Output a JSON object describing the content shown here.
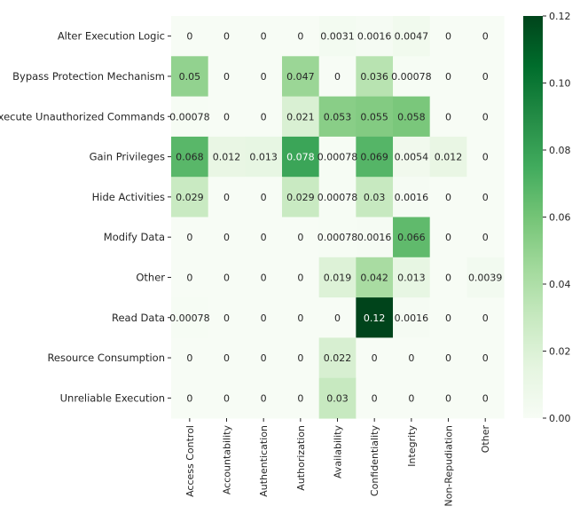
{
  "chart_data": {
    "type": "heatmap",
    "title": "",
    "xlabel": "",
    "ylabel": "",
    "rows": [
      "Alter Execution Logic",
      "Bypass Protection Mechanism",
      "Execute Unauthorized Commands",
      "Gain Privileges",
      "Hide Activities",
      "Modify Data",
      "Other",
      "Read Data",
      "Resource Consumption",
      "Unreliable Execution"
    ],
    "columns": [
      "Access Control",
      "Accountability",
      "Authentication",
      "Authorization",
      "Availability",
      "Confidentiality",
      "Integrity",
      "Non-Repudiation",
      "Other"
    ],
    "values": [
      [
        0,
        0,
        0,
        0,
        0.0031,
        0.0016,
        0.0047,
        0,
        0
      ],
      [
        0.05,
        0,
        0,
        0.047,
        0,
        0.036,
        0.00078,
        0,
        0
      ],
      [
        0.00078,
        0,
        0,
        0.021,
        0.053,
        0.055,
        0.058,
        0,
        0
      ],
      [
        0.068,
        0.012,
        0.013,
        0.078,
        0.00078,
        0.069,
        0.0054,
        0.012,
        0
      ],
      [
        0.029,
        0,
        0,
        0.029,
        0.00078,
        0.03,
        0.0016,
        0,
        0
      ],
      [
        0,
        0,
        0,
        0,
        0.00078,
        0.0016,
        0.066,
        0,
        0
      ],
      [
        0,
        0,
        0,
        0,
        0.019,
        0.042,
        0.013,
        0,
        0.0039
      ],
      [
        0.00078,
        0,
        0,
        0,
        0,
        0.12,
        0.0016,
        0,
        0
      ],
      [
        0,
        0,
        0,
        0,
        0.022,
        0,
        0,
        0,
        0
      ],
      [
        0,
        0,
        0,
        0,
        0.03,
        0,
        0,
        0,
        0
      ]
    ],
    "cell_labels": [
      [
        "0",
        "0",
        "0",
        "0",
        "0.0031",
        "0.0016",
        "0.0047",
        "0",
        "0"
      ],
      [
        "0.05",
        "0",
        "0",
        "0.047",
        "0",
        "0.036",
        "0.00078",
        "0",
        "0"
      ],
      [
        "0.00078",
        "0",
        "0",
        "0.021",
        "0.053",
        "0.055",
        "0.058",
        "0",
        "0"
      ],
      [
        "0.068",
        "0.012",
        "0.013",
        "0.078",
        "0.00078",
        "0.069",
        "0.0054",
        "0.012",
        "0"
      ],
      [
        "0.029",
        "0",
        "0",
        "0.029",
        "0.00078",
        "0.03",
        "0.0016",
        "0",
        "0"
      ],
      [
        "0",
        "0",
        "0",
        "0",
        "0.00078",
        "0.0016",
        "0.066",
        "0",
        "0"
      ],
      [
        "0",
        "0",
        "0",
        "0",
        "0.019",
        "0.042",
        "0.013",
        "0",
        "0.0039"
      ],
      [
        "0.00078",
        "0",
        "0",
        "0",
        "0",
        "0.12",
        "0.0016",
        "0",
        "0"
      ],
      [
        "0",
        "0",
        "0",
        "0",
        "0.022",
        "0",
        "0",
        "0",
        "0"
      ],
      [
        "0",
        "0",
        "0",
        "0",
        "0.03",
        "0",
        "0",
        "0",
        "0"
      ]
    ],
    "colorbar": {
      "range": [
        0,
        0.12
      ],
      "ticks": [
        0,
        0.02,
        0.04,
        0.06,
        0.08,
        0.1,
        0.12
      ],
      "tick_labels": [
        "0.00",
        "0.02",
        "0.04",
        "0.06",
        "0.08",
        "0.10",
        "0.12"
      ]
    },
    "colormap": [
      "#f7fcf5",
      "#e5f5e0",
      "#c7e9c0",
      "#a1d99b",
      "#74c476",
      "#41ab5d",
      "#238b45",
      "#006d2c",
      "#00441b"
    ],
    "text_colors": {
      "light_cell": "#262626",
      "dark_cell": "#ffffff"
    }
  }
}
